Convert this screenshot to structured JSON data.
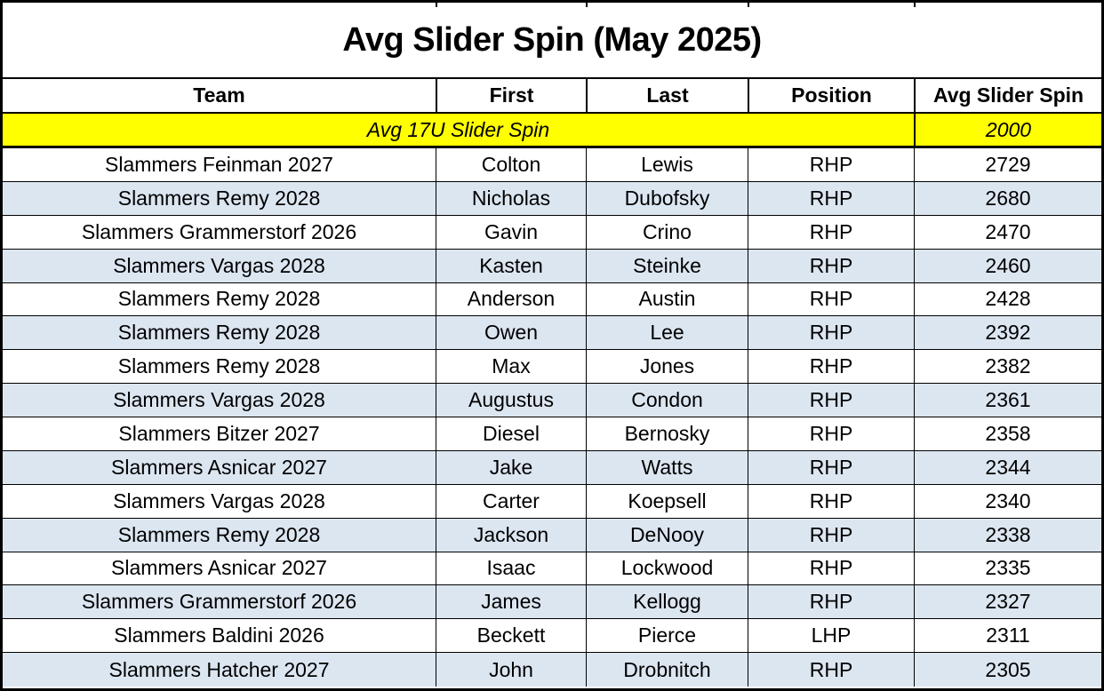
{
  "table": {
    "title": "Avg Slider Spin (May 2025)",
    "columns": [
      "Team",
      "First",
      "Last",
      "Position",
      "Avg Slider Spin"
    ],
    "summary": {
      "label": "Avg 17U Slider Spin",
      "value": "2000"
    },
    "rows": [
      {
        "team": "Slammers Feinman 2027",
        "first": "Colton",
        "last": "Lewis",
        "position": "RHP",
        "spin": "2729"
      },
      {
        "team": "Slammers Remy 2028",
        "first": "Nicholas",
        "last": "Dubofsky",
        "position": "RHP",
        "spin": "2680"
      },
      {
        "team": "Slammers Grammerstorf 2026",
        "first": "Gavin",
        "last": "Crino",
        "position": "RHP",
        "spin": "2470"
      },
      {
        "team": "Slammers Vargas 2028",
        "first": "Kasten",
        "last": "Steinke",
        "position": "RHP",
        "spin": "2460"
      },
      {
        "team": "Slammers Remy 2028",
        "first": "Anderson",
        "last": "Austin",
        "position": "RHP",
        "spin": "2428"
      },
      {
        "team": "Slammers Remy 2028",
        "first": "Owen",
        "last": "Lee",
        "position": "RHP",
        "spin": "2392"
      },
      {
        "team": "Slammers Remy 2028",
        "first": "Max",
        "last": "Jones",
        "position": "RHP",
        "spin": "2382"
      },
      {
        "team": "Slammers Vargas 2028",
        "first": "Augustus",
        "last": "Condon",
        "position": "RHP",
        "spin": "2361"
      },
      {
        "team": "Slammers Bitzer 2027",
        "first": "Diesel",
        "last": "Bernosky",
        "position": "RHP",
        "spin": "2358"
      },
      {
        "team": "Slammers Asnicar 2027",
        "first": "Jake",
        "last": "Watts",
        "position": "RHP",
        "spin": "2344"
      },
      {
        "team": "Slammers Vargas 2028",
        "first": "Carter",
        "last": "Koepsell",
        "position": "RHP",
        "spin": "2340"
      },
      {
        "team": "Slammers Remy 2028",
        "first": "Jackson",
        "last": "DeNooy",
        "position": "RHP",
        "spin": "2338"
      },
      {
        "team": "Slammers Asnicar 2027",
        "first": "Isaac",
        "last": "Lockwood",
        "position": "RHP",
        "spin": "2335"
      },
      {
        "team": "Slammers Grammerstorf 2026",
        "first": "James",
        "last": "Kellogg",
        "position": "RHP",
        "spin": "2327"
      },
      {
        "team": "Slammers Baldini 2026",
        "first": "Beckett",
        "last": "Pierce",
        "position": "LHP",
        "spin": "2311"
      },
      {
        "team": "Slammers Hatcher 2027",
        "first": "John",
        "last": "Drobnitch",
        "position": "RHP",
        "spin": "2305"
      }
    ]
  },
  "colors": {
    "highlight_row": "#ffff00",
    "band_row": "#dce6f1",
    "border": "#000000",
    "text": "#000000",
    "background": "#ffffff"
  }
}
